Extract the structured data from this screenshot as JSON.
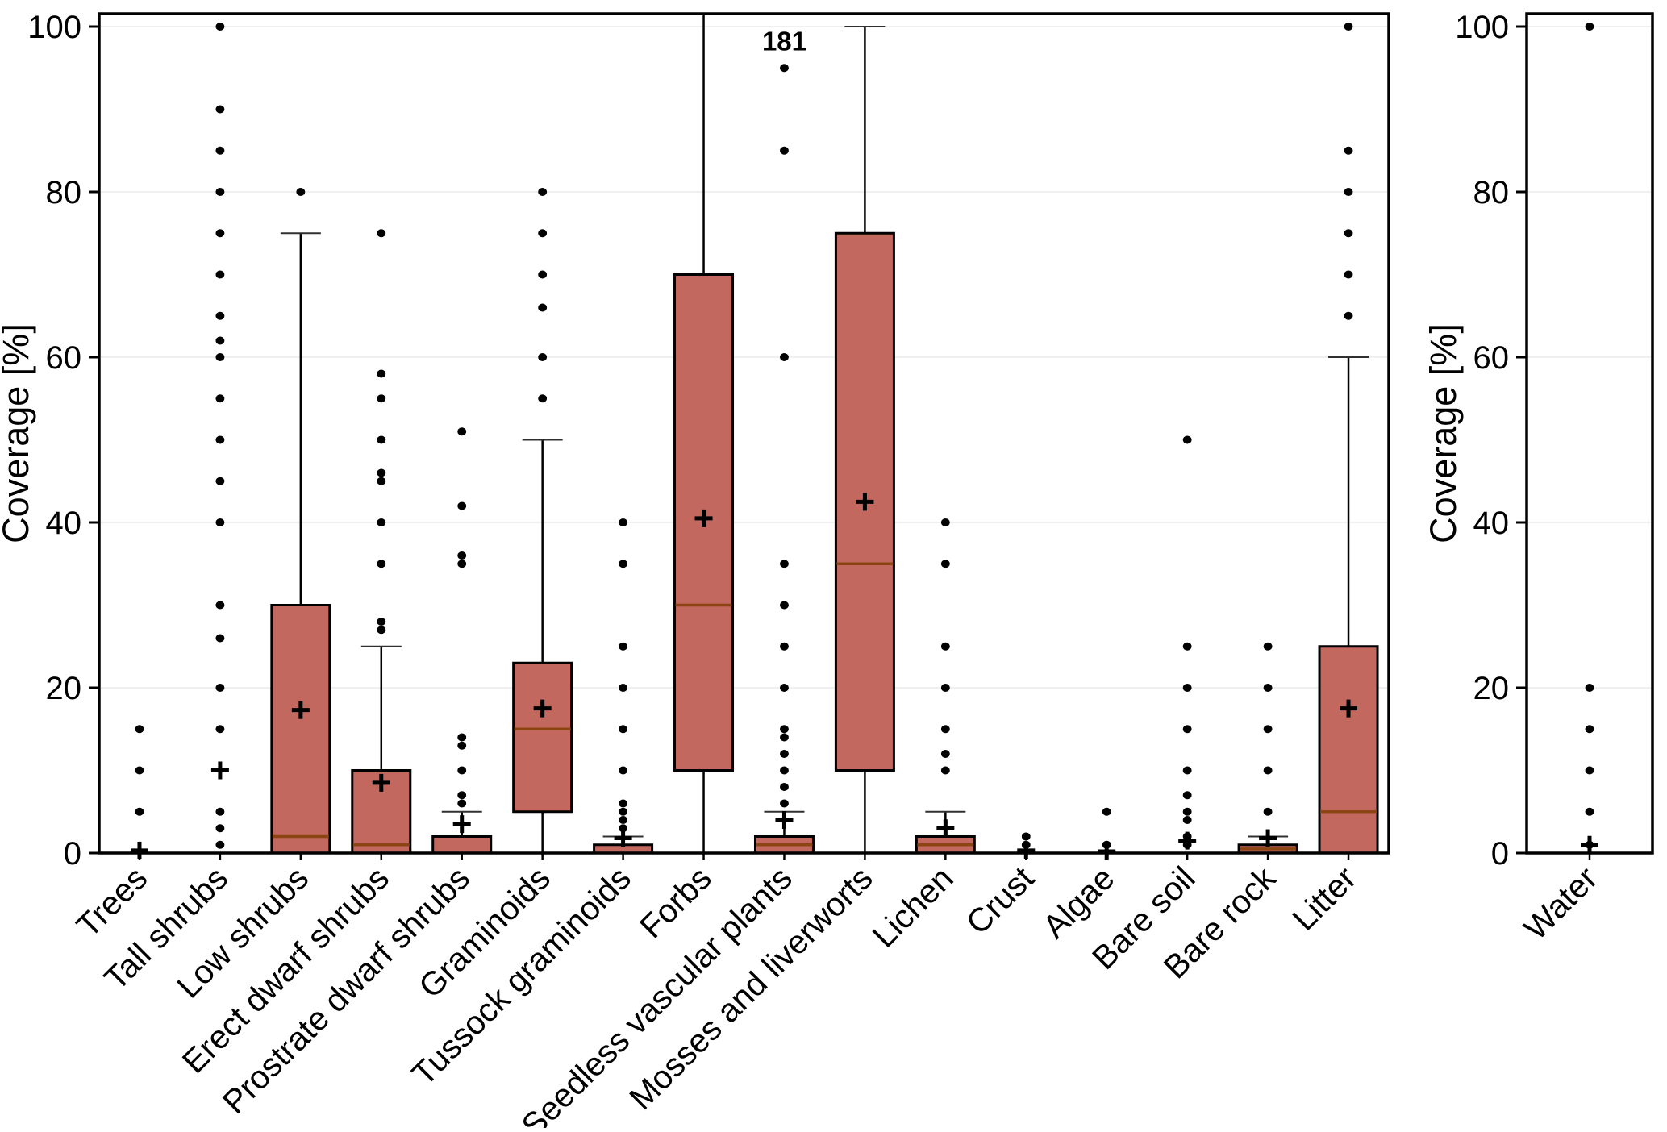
{
  "figure": {
    "background": "#ffffff",
    "description": "Box plots of coverage percent by surface class, with separate panel for Water"
  },
  "chart_data": {
    "type": "boxplot",
    "title": "",
    "xlabel": "",
    "ylabel": "Coverage [%]",
    "ylim": [
      0,
      101.5
    ],
    "yticks": [
      0,
      20,
      40,
      60,
      80,
      100
    ],
    "grid": "horizontal-light",
    "styles": {
      "box_fill": "#c2685f",
      "box_border": "#000000",
      "median_color": "#8b4513",
      "whisker_color": "#000000",
      "cap_color": "#303030",
      "grid_color": "#f0f0f0",
      "dot_color": "#000000",
      "mean_color": "#000000",
      "mean_symbol": "+",
      "outlier_symbol": "dot"
    },
    "panels": [
      {
        "name": "main",
        "ylabel": "Coverage [%]",
        "categories": [
          {
            "label": "Trees",
            "q1": 0,
            "median": 0,
            "q3": 0,
            "whisker_low": 0,
            "whisker_high": 0,
            "mean": 0.3,
            "outliers": [
              15,
              10,
              5
            ]
          },
          {
            "label": "Tall shrubs",
            "q1": 0,
            "median": 0,
            "q3": 0,
            "whisker_low": 0,
            "whisker_high": 0,
            "mean": 10,
            "outliers": [
              100,
              90,
              85,
              80,
              75,
              70,
              65,
              62,
              60,
              55,
              50,
              45,
              40,
              30,
              26,
              20,
              15,
              5,
              3,
              1
            ]
          },
          {
            "label": "Low shrubs",
            "q1": 0,
            "median": 2,
            "q3": 30,
            "whisker_low": 0,
            "whisker_high": 75,
            "mean": 17.3,
            "outliers": [
              80
            ]
          },
          {
            "label": "Erect dwarf shrubs",
            "q1": 0,
            "median": 1,
            "q3": 10,
            "whisker_low": 0,
            "whisker_high": 25,
            "mean": 8.5,
            "outliers": [
              75,
              58,
              55,
              50,
              46,
              45,
              40,
              35,
              28,
              27
            ]
          },
          {
            "label": "Prostrate dwarf shrubs",
            "q1": 0,
            "median": 0,
            "q3": 2,
            "whisker_low": 0,
            "whisker_high": 5,
            "mean": 3.5,
            "outliers": [
              51,
              42,
              36,
              35,
              14,
              13,
              10,
              7,
              6
            ]
          },
          {
            "label": "Graminoids",
            "q1": 5,
            "median": 15,
            "q3": 23,
            "whisker_low": 0,
            "whisker_high": 50,
            "mean": 17.5,
            "outliers": [
              80,
              75,
              70,
              66,
              60,
              55
            ]
          },
          {
            "label": "Tussock graminoids",
            "q1": 0,
            "median": 0,
            "q3": 1,
            "whisker_low": 0,
            "whisker_high": 2,
            "mean": 1.8,
            "outliers": [
              40,
              35,
              25,
              20,
              15,
              10,
              6,
              5,
              4,
              3
            ]
          },
          {
            "label": "Forbs",
            "q1": 10,
            "median": 30,
            "q3": 70,
            "whisker_low": 0,
            "whisker_high": 101.5,
            "clip_top": true,
            "mean": 40.5,
            "outliers": []
          },
          {
            "label": "Seedless vascular plants",
            "q1": 0,
            "median": 1,
            "q3": 2,
            "whisker_low": 0,
            "whisker_high": 5,
            "mean": 4,
            "outliers": [
              95,
              85,
              60,
              35,
              30,
              25,
              20,
              15,
              14,
              12,
              10,
              8,
              6
            ],
            "annotation": "181"
          },
          {
            "label": "Mosses and liverworts",
            "q1": 10,
            "median": 35,
            "q3": 75,
            "whisker_low": 0,
            "whisker_high": 100,
            "mean": 42.5,
            "outliers": []
          },
          {
            "label": "Lichen",
            "q1": 0,
            "median": 1,
            "q3": 2,
            "whisker_low": 0,
            "whisker_high": 5,
            "mean": 3,
            "outliers": [
              40,
              35,
              25,
              20,
              15,
              12,
              10
            ]
          },
          {
            "label": "Crust",
            "q1": 0,
            "median": 0,
            "q3": 0,
            "whisker_low": 0,
            "whisker_high": 0,
            "mean": 0.3,
            "outliers": [
              2,
              1
            ]
          },
          {
            "label": "Algae",
            "q1": 0,
            "median": 0,
            "q3": 0,
            "whisker_low": 0,
            "whisker_high": 0,
            "mean": 0.2,
            "outliers": [
              5,
              1
            ]
          },
          {
            "label": "Bare soil",
            "q1": 0,
            "median": 0,
            "q3": 0,
            "whisker_low": 0,
            "whisker_high": 0,
            "mean": 1.5,
            "outliers": [
              50,
              25,
              20,
              15,
              10,
              7,
              5,
              4,
              2,
              1
            ]
          },
          {
            "label": "Bare rock",
            "q1": 0,
            "median": 0.5,
            "q3": 1,
            "whisker_low": 0,
            "whisker_high": 2,
            "mean": 1.8,
            "outliers": [
              25,
              20,
              15,
              10,
              5
            ]
          },
          {
            "label": "Litter",
            "q1": 0,
            "median": 5,
            "q3": 25,
            "whisker_low": 0,
            "whisker_high": 60,
            "mean": 17.5,
            "outliers": [
              100,
              85,
              80,
              75,
              70,
              65
            ]
          }
        ]
      },
      {
        "name": "water",
        "ylabel": "Coverage [%]",
        "categories": [
          {
            "label": "Water",
            "q1": 0,
            "median": 0,
            "q3": 0,
            "whisker_low": 0,
            "whisker_high": 0,
            "mean": 1,
            "outliers": [
              100,
              20,
              15,
              10,
              5,
              1
            ]
          }
        ]
      }
    ]
  }
}
